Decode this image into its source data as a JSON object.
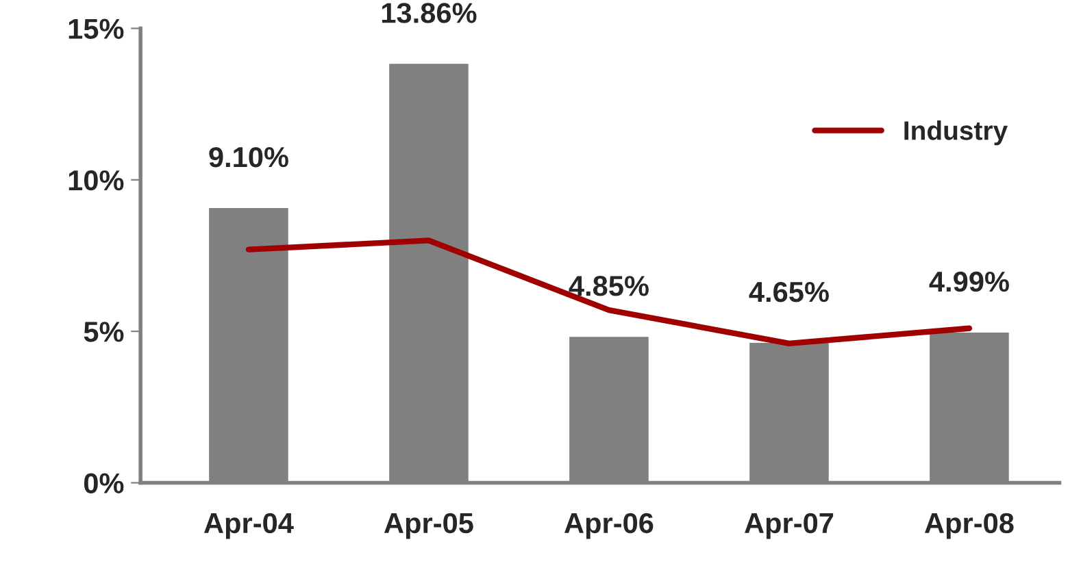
{
  "chart_data": {
    "type": "bar",
    "categories": [
      "Apr-04",
      "Apr-05",
      "Apr-06",
      "Apr-07",
      "Apr-08"
    ],
    "series": [
      {
        "color": "#808080",
        "values": [
          9.1,
          13.86,
          4.85,
          4.65,
          4.99
        ],
        "value_labels": [
          "9.10%",
          "13.86%",
          "4.85%",
          "4.65%",
          "4.99%"
        ]
      },
      {
        "type": "line",
        "name": "Industry",
        "color": "#a00000",
        "values": [
          7.7,
          8.0,
          5.7,
          4.6,
          5.1
        ]
      }
    ],
    "ylim": [
      0,
      15
    ],
    "yticks": [
      {
        "value": 0,
        "label": "0%"
      },
      {
        "value": 5,
        "label": "5%"
      },
      {
        "value": 10,
        "label": "10%"
      },
      {
        "value": 15,
        "label": "15%"
      }
    ],
    "grid": false,
    "legend": "top right",
    "marker": "none",
    "line_style": "solid"
  }
}
